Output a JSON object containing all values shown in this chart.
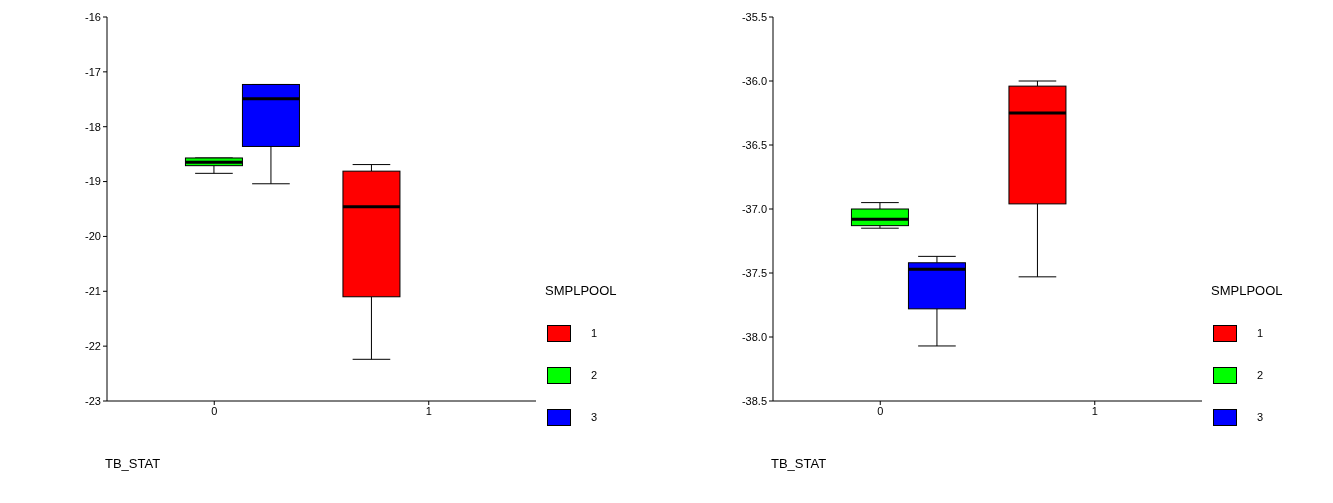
{
  "chart_data": [
    {
      "type": "box",
      "xlabel": "TB_STAT",
      "legend_title": "SMPLPOOL",
      "legend": "right",
      "categories": [
        "0",
        "1"
      ],
      "ylim": [
        -23,
        -16
      ],
      "yticks": [
        -23,
        -22,
        -21,
        -20,
        -19,
        -18,
        -17,
        -16
      ],
      "series": [
        {
          "name": "1",
          "color": "#ff0000",
          "boxes": [
            null,
            {
              "low": -22.24,
              "q1": -21.1,
              "median": -19.46,
              "q3": -18.81,
              "high": -18.69
            }
          ]
        },
        {
          "name": "2",
          "color": "#00ff00",
          "boxes": [
            {
              "low": -18.85,
              "q1": -18.71,
              "median": -18.65,
              "q3": -18.57,
              "high": -18.57
            },
            null
          ]
        },
        {
          "name": "3",
          "color": "#0000ff",
          "boxes": [
            {
              "low": -19.04,
              "q1": -18.36,
              "median": -17.49,
              "q3": -17.23,
              "high": -17.23
            },
            null
          ]
        }
      ]
    },
    {
      "type": "box",
      "xlabel": "TB_STAT",
      "legend_title": "SMPLPOOL",
      "legend": "right",
      "categories": [
        "0",
        "1"
      ],
      "ylim": [
        -38.5,
        -35.5
      ],
      "yticks": [
        {
          "value": -38.5,
          "label": "-38.5"
        },
        {
          "value": -38,
          "label": "-38.0"
        },
        {
          "value": -37.5,
          "label": "-37.5"
        },
        {
          "value": -37,
          "label": "-37.0"
        },
        {
          "value": -36.5,
          "label": "-36.5"
        },
        {
          "value": -36,
          "label": "-36.0"
        },
        {
          "value": -35.5,
          "label": "-35.5"
        }
      ],
      "series": [
        {
          "name": "1",
          "color": "#ff0000",
          "boxes": [
            null,
            {
              "low": -37.53,
              "q1": -36.96,
              "median": -36.25,
              "q3": -36.04,
              "high": -36.0
            }
          ]
        },
        {
          "name": "2",
          "color": "#00ff00",
          "boxes": [
            {
              "low": -37.15,
              "q1": -37.13,
              "median": -37.08,
              "q3": -37.0,
              "high": -36.95
            },
            null
          ]
        },
        {
          "name": "3",
          "color": "#0000ff",
          "boxes": [
            {
              "low": -38.07,
              "q1": -37.78,
              "median": -37.47,
              "q3": -37.42,
              "high": -37.37
            },
            null
          ]
        }
      ]
    }
  ]
}
